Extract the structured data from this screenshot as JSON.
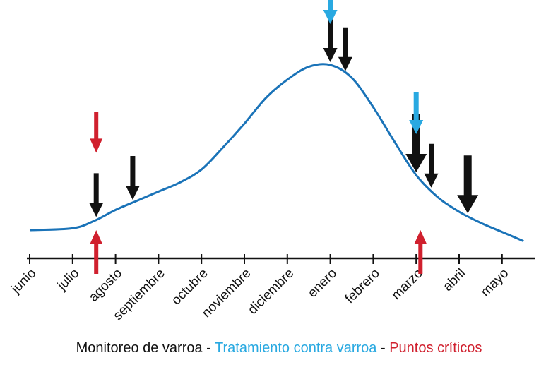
{
  "chart_data": {
    "type": "line",
    "categories": [
      "junio",
      "julio",
      "agosto",
      "septiembre",
      "octubre",
      "noviembre",
      "diciembre",
      "enero",
      "febrero",
      "marzo",
      "abril",
      "mayo"
    ],
    "x_range": [
      0,
      11.5
    ],
    "y_range": [
      0,
      100
    ],
    "series": [
      {
        "color": "#1a73b8",
        "points": [
          [
            0,
            10
          ],
          [
            1,
            11
          ],
          [
            1.5,
            15
          ],
          [
            2,
            21
          ],
          [
            2.5,
            26
          ],
          [
            3,
            31
          ],
          [
            3.5,
            36
          ],
          [
            4,
            43
          ],
          [
            4.5,
            55
          ],
          [
            5,
            68
          ],
          [
            5.5,
            82
          ],
          [
            6,
            92
          ],
          [
            6.5,
            99
          ],
          [
            7,
            100
          ],
          [
            7.5,
            93
          ],
          [
            8,
            77
          ],
          [
            8.5,
            58
          ],
          [
            9,
            40
          ],
          [
            9.5,
            28
          ],
          [
            10,
            20
          ],
          [
            10.5,
            14
          ],
          [
            11,
            9
          ],
          [
            11.5,
            4
          ]
        ]
      }
    ],
    "arrows": [
      {
        "type": "monitoreo",
        "x": 1.55,
        "size": "medium"
      },
      {
        "type": "monitoreo",
        "x": 2.4,
        "size": "medium"
      },
      {
        "type": "monitoreo",
        "x": 7.0,
        "size": "medium"
      },
      {
        "type": "monitoreo",
        "x": 7.35,
        "size": "medium"
      },
      {
        "type": "monitoreo",
        "x": 9.0,
        "size": "large"
      },
      {
        "type": "monitoreo",
        "x": 9.35,
        "size": "medium"
      },
      {
        "type": "monitoreo",
        "x": 10.2,
        "size": "large"
      },
      {
        "type": "tratamiento",
        "x": 7.0
      },
      {
        "type": "tratamiento",
        "x": 9.0
      },
      {
        "type": "critico_arriba",
        "x": 1.55
      },
      {
        "type": "critico_abajo",
        "x": 1.55
      },
      {
        "type": "critico_abajo",
        "x": 9.1
      }
    ],
    "colors": {
      "curve": "#1a73b8",
      "monitoreo": "#111111",
      "tratamiento": "#29a9e1",
      "critico": "#d0202e"
    }
  },
  "legend": {
    "monitoreo": "Monitoreo de varroa",
    "sep1": " - ",
    "tratamiento": "Tratamiento contra varroa",
    "sep2": " - ",
    "critico": "Puntos críticos"
  }
}
